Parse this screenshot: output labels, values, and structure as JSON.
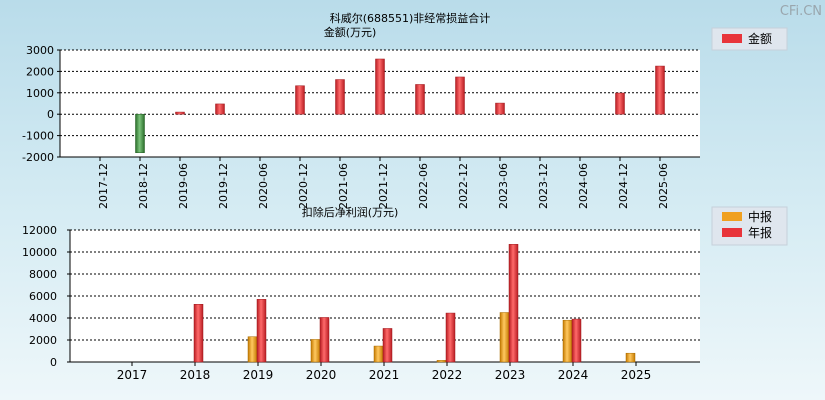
{
  "watermark": "CFi.CN",
  "colors": {
    "negative": "#3a8a3a",
    "positive": "#e8343a",
    "quarter": "#f0a020",
    "annual": "#e8343a"
  },
  "chart_data": [
    {
      "type": "bar",
      "title": "科威尔(688551)非经常损益合计",
      "ylabel": "金额(万元)",
      "legend": [
        "金额"
      ],
      "legend_position": "top-right",
      "grid": true,
      "ylim": [
        -2000,
        3000
      ],
      "yticks": [
        "3000",
        "2000",
        "1000",
        "0",
        "-1000",
        "-2000"
      ],
      "yticks_values": [
        3000,
        2000,
        1000,
        0,
        -1000,
        -2000
      ],
      "categories": [
        "2017-12",
        "2018-12",
        "2019-06",
        "2019-12",
        "2020-06",
        "2020-12",
        "2021-06",
        "2021-12",
        "2022-06",
        "2022-12",
        "2023-06",
        "2023-12",
        "2024-06",
        "2024-12",
        "2025-06"
      ],
      "values": [
        0,
        -1800,
        100,
        480,
        0,
        1330,
        1620,
        2580,
        1390,
        1740,
        520,
        0,
        0,
        990,
        2250
      ]
    },
    {
      "type": "bar",
      "title": "扣除后净利润(万元)",
      "legend": [
        "中报",
        "年报"
      ],
      "legend_position": "top-right",
      "grid": true,
      "ylim": [
        0,
        12000
      ],
      "yticks": [
        "12000",
        "10000",
        "8000",
        "6000",
        "4000",
        "2000",
        "0"
      ],
      "yticks_values": [
        12000,
        10000,
        8000,
        6000,
        4000,
        2000,
        0
      ],
      "categories": [
        "2017",
        "2018",
        "2019",
        "2020",
        "2021",
        "2022",
        "2023",
        "2024",
        "2025"
      ],
      "series": [
        {
          "name": "中报",
          "values": [
            0,
            0,
            2300,
            2050,
            1450,
            150,
            4500,
            3800,
            800
          ]
        },
        {
          "name": "年报",
          "values": [
            0,
            5250,
            5700,
            4050,
            3050,
            4450,
            10700,
            3900,
            null
          ]
        }
      ]
    }
  ]
}
